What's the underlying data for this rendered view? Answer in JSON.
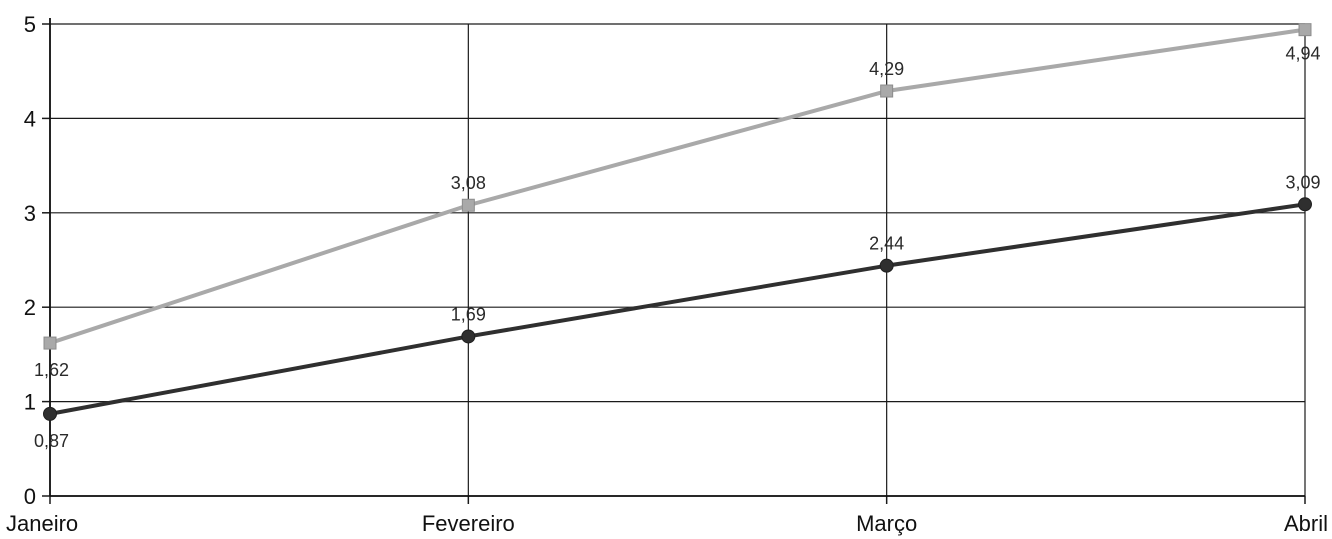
{
  "chart_data": {
    "type": "line",
    "title": "",
    "xlabel": "",
    "ylabel": "",
    "categories": [
      "Janeiro",
      "Fevereiro",
      "Março",
      "Abril"
    ],
    "ylim": [
      0,
      5
    ],
    "yticks": [
      0,
      1,
      2,
      3,
      4,
      5
    ],
    "grid": true,
    "legend": "none",
    "series": [
      {
        "values": [
          1.62,
          3.08,
          4.29,
          4.94
        ],
        "labels": [
          "1,62",
          "3,08",
          "4,29",
          "4,94"
        ],
        "color": "#a9a9a9",
        "marker": "square"
      },
      {
        "values": [
          0.87,
          1.69,
          2.44,
          3.09
        ],
        "labels": [
          "0,87",
          "1,69",
          "2,44",
          "3,09"
        ],
        "color": "#2f2f2f",
        "marker": "circle"
      }
    ]
  }
}
